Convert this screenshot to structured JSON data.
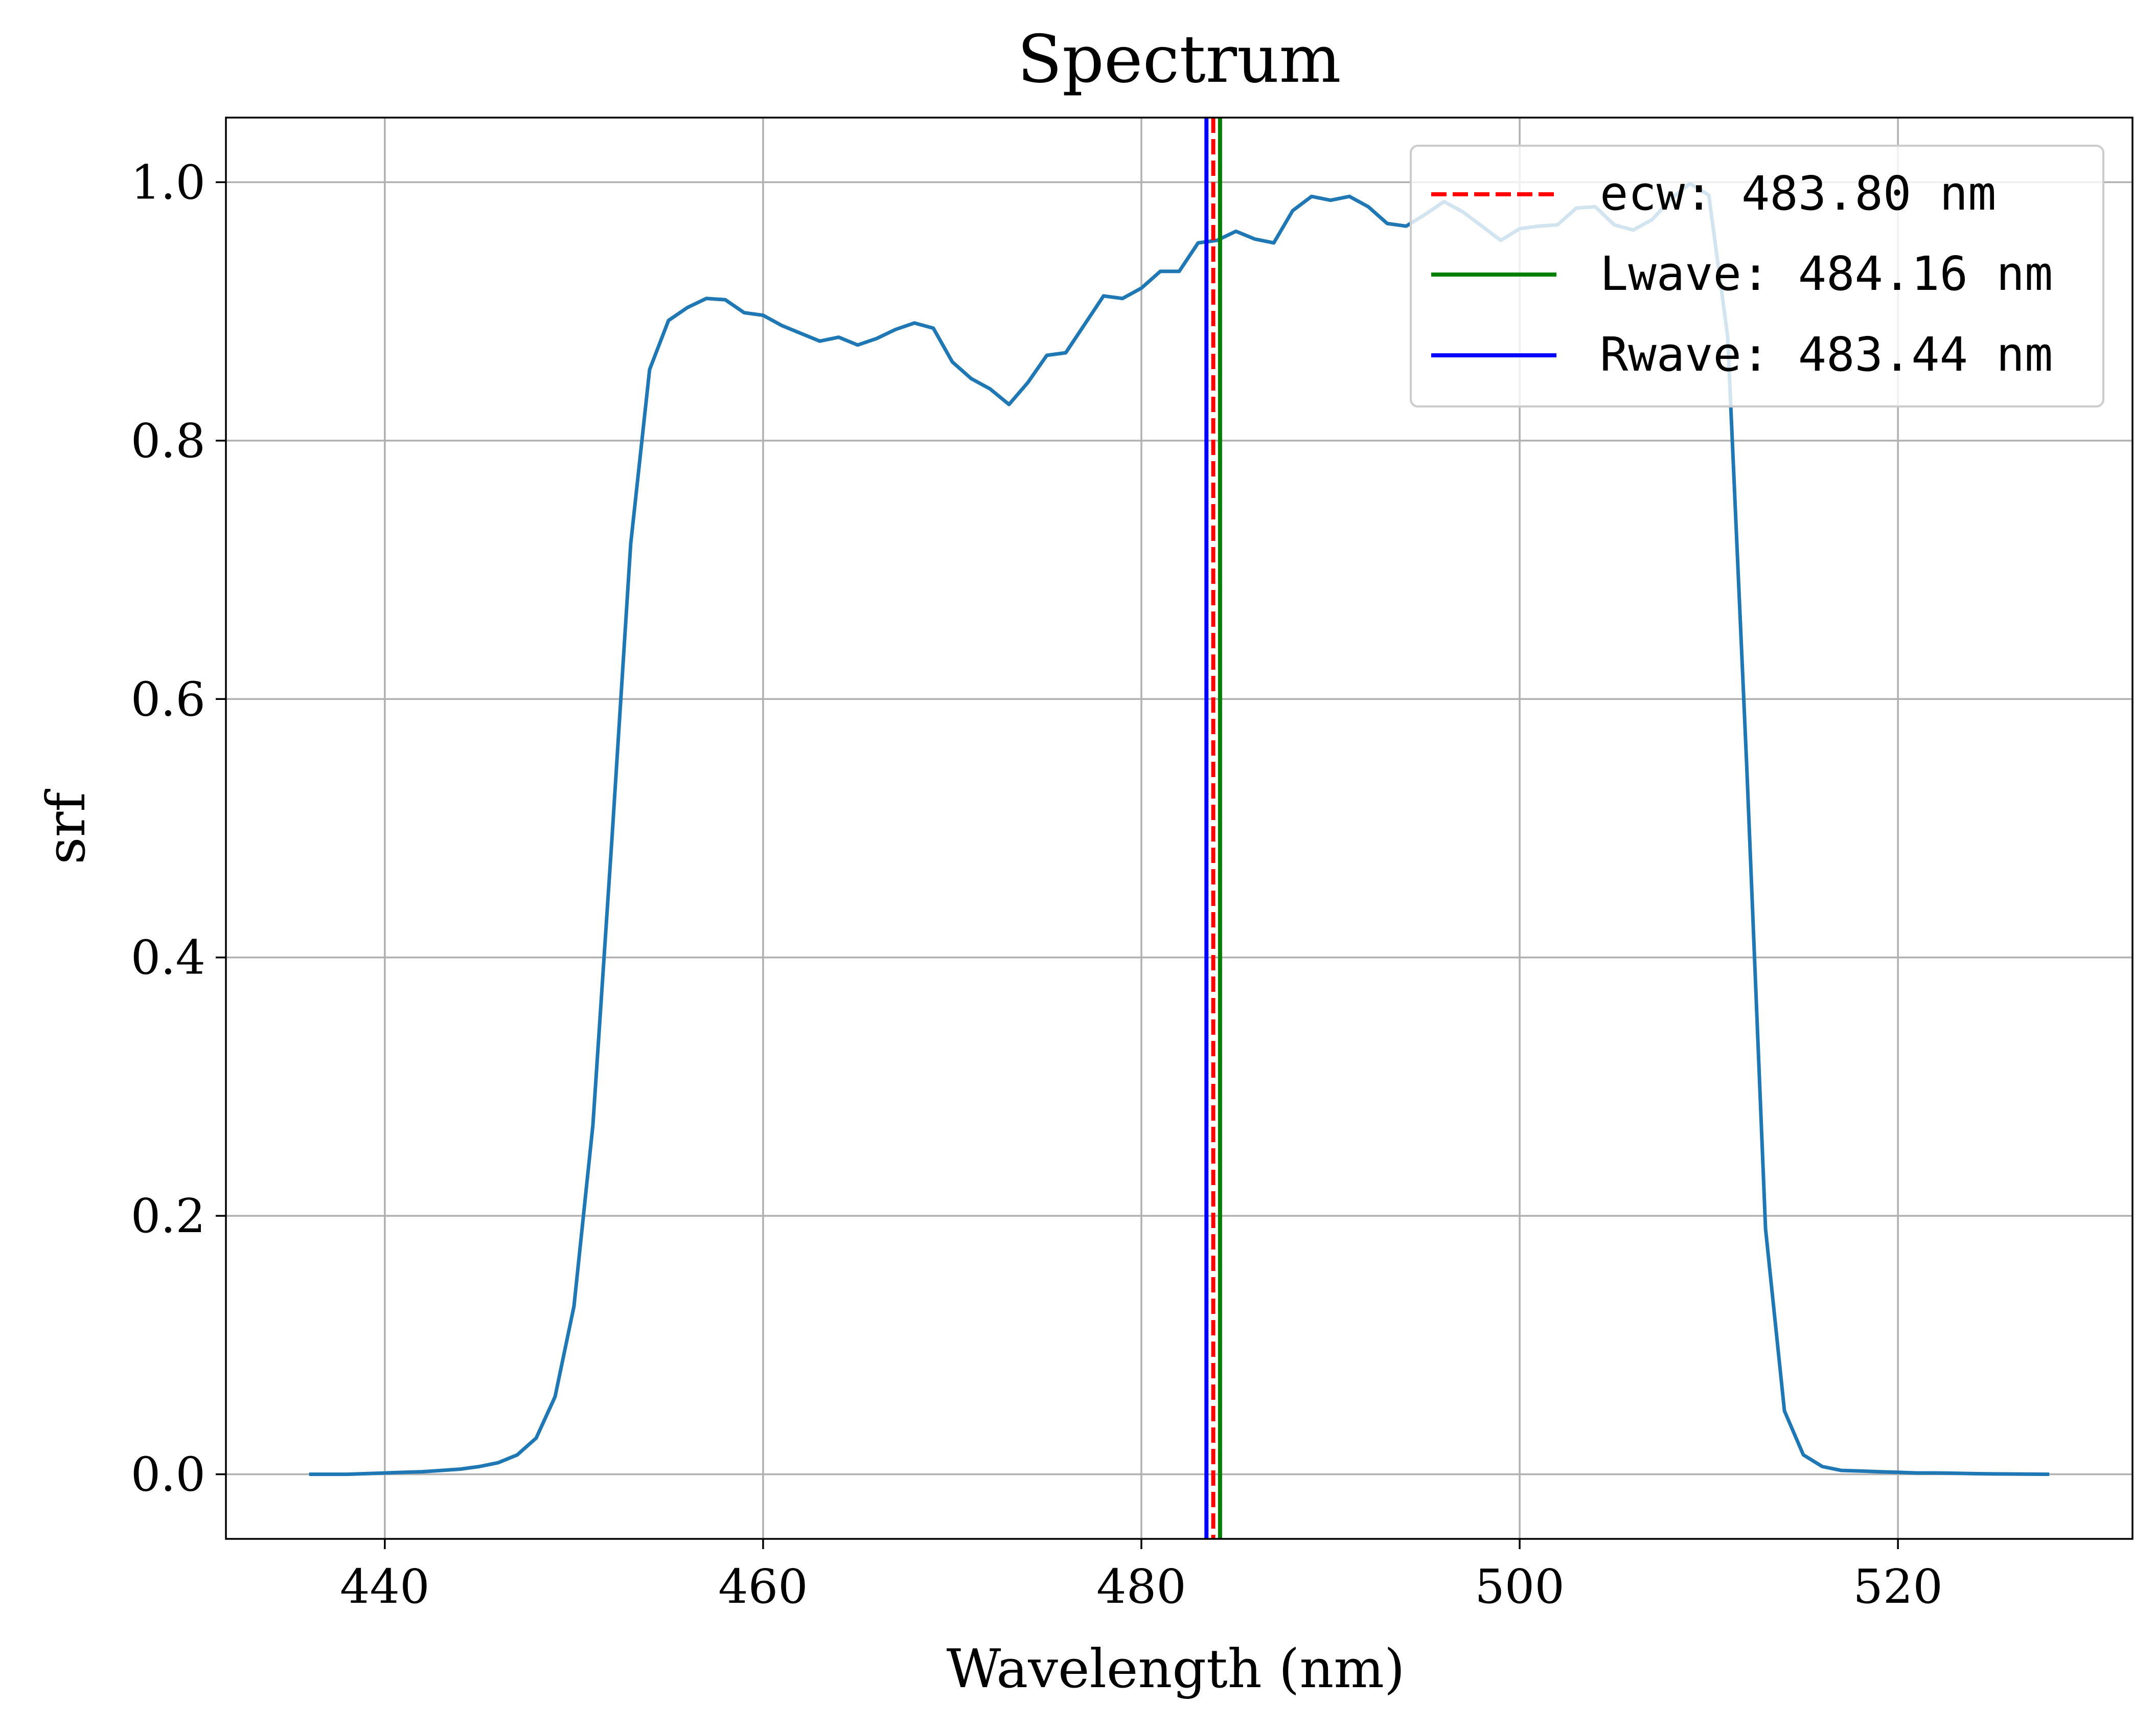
{
  "chart_data": {
    "type": "line",
    "title": "Spectrum",
    "xlabel": "Wavelength (nm)",
    "ylabel": "srf",
    "xlim": [
      431.6,
      532.4
    ],
    "ylim": [
      -0.05,
      1.05
    ],
    "grid": true,
    "legend_position": "top-right",
    "xticks": [
      440,
      460,
      480,
      500,
      520
    ],
    "xtick_labels": [
      "440",
      "460",
      "480",
      "500",
      "520"
    ],
    "yticks": [
      0.0,
      0.2,
      0.4,
      0.6,
      0.8,
      1.0
    ],
    "ytick_labels": [
      "0.0",
      "0.2",
      "0.4",
      "0.6",
      "0.8",
      "1.0"
    ],
    "colors": {
      "srf": "#1f77b4",
      "ecw": "#ff0000",
      "lwave": "#008000",
      "rwave": "#0000ff",
      "grid": "#b0b0b0",
      "legend_border": "#cccccc"
    },
    "series": [
      {
        "x": [
          436,
          437,
          438,
          439,
          440,
          441,
          442,
          443,
          444,
          445,
          446,
          447,
          448,
          449,
          450,
          451,
          452,
          453,
          454,
          455,
          456,
          457,
          458,
          459,
          460,
          461,
          462,
          463,
          464,
          465,
          466,
          467,
          468,
          469,
          470,
          471,
          472,
          473,
          474,
          475,
          476,
          477,
          478,
          479,
          480,
          481,
          482,
          483,
          484,
          485,
          486,
          487,
          488,
          489,
          490,
          491,
          492,
          493,
          494,
          495,
          496,
          497,
          498,
          499,
          500,
          501,
          502,
          503,
          504,
          505,
          506,
          507,
          508,
          509,
          510,
          511,
          512,
          513,
          514,
          515,
          516,
          517,
          518,
          519,
          520,
          521,
          522,
          523,
          524,
          525,
          526,
          527,
          528
        ],
        "y": [
          0.0,
          0.0,
          0.0,
          0.0005,
          0.001,
          0.0015,
          0.002,
          0.003,
          0.004,
          0.006,
          0.009,
          0.015,
          0.028,
          0.06,
          0.13,
          0.27,
          0.49,
          0.72,
          0.855,
          0.893,
          0.903,
          0.91,
          0.909,
          0.899,
          0.897,
          0.889,
          0.883,
          0.877,
          0.88,
          0.874,
          0.879,
          0.886,
          0.891,
          0.887,
          0.861,
          0.848,
          0.84,
          0.828,
          0.845,
          0.866,
          0.868,
          0.89,
          0.912,
          0.91,
          0.918,
          0.931,
          0.931,
          0.953,
          0.955,
          0.962,
          0.956,
          0.953,
          0.978,
          0.989,
          0.986,
          0.989,
          0.981,
          0.968,
          0.966,
          0.975,
          0.985,
          0.977,
          0.966,
          0.955,
          0.964,
          0.966,
          0.967,
          0.98,
          0.981,
          0.967,
          0.963,
          0.971,
          0.987,
          0.999,
          0.99,
          0.88,
          0.55,
          0.19,
          0.049,
          0.015,
          0.006,
          0.003,
          0.0025,
          0.002,
          0.0015,
          0.001,
          0.001,
          0.0008,
          0.0005,
          0.0003,
          0.0002,
          0.0001,
          0.0
        ]
      }
    ],
    "vlines": [
      {
        "key": "ecw",
        "x": 483.8,
        "style": "dashed",
        "label": "ecw: 483.80 nm"
      },
      {
        "key": "lwave",
        "x": 484.16,
        "style": "solid",
        "label": "Lwave: 484.16 nm"
      },
      {
        "key": "rwave",
        "x": 483.44,
        "style": "solid",
        "label": "Rwave: 483.44 nm"
      }
    ]
  }
}
